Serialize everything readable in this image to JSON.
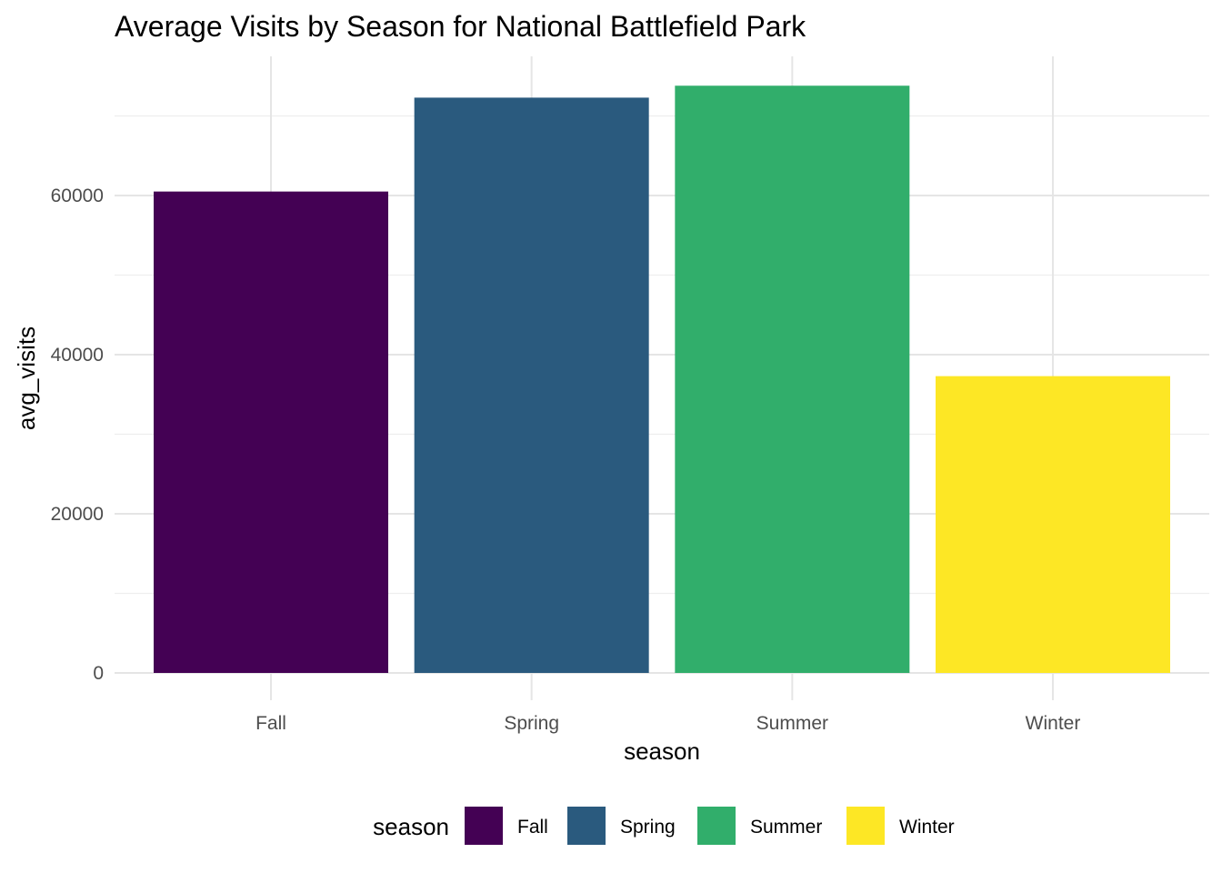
{
  "chart_data": {
    "type": "bar",
    "title": "Average Visits by Season for National Battlefield Park",
    "xlabel": "season",
    "ylabel": "avg_visits",
    "categories": [
      "Fall",
      "Spring",
      "Summer",
      "Winter"
    ],
    "values": [
      60500,
      72300,
      73800,
      37300
    ],
    "colors": [
      "#440154",
      "#2a5a7e",
      "#31ae6b",
      "#fde725"
    ],
    "ylim": [
      0,
      77500
    ],
    "yticks": [
      0,
      20000,
      40000,
      60000
    ],
    "yticks_labels": [
      "0",
      "20000",
      "40000",
      "60000"
    ],
    "grid": true,
    "legend": {
      "title": "season",
      "placement": "bottom",
      "entries": [
        "Fall",
        "Spring",
        "Summer",
        "Winter"
      ]
    }
  }
}
